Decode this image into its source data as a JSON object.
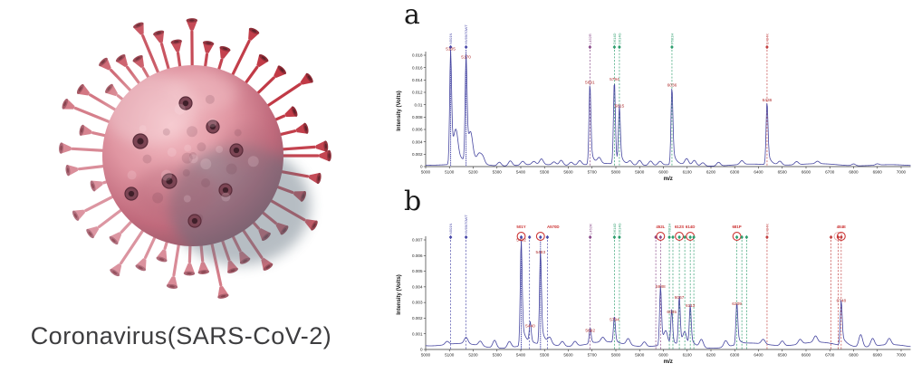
{
  "caption": "Coronavirus(SARS-CoV-2)",
  "colors": {
    "trace": "#4646a0",
    "peak_label": "#b03030",
    "blue_marker": "#4848a8",
    "purple_marker": "#8a4a8a",
    "green_marker": "#2e9e6e",
    "red_marker": "#c24040",
    "circle_red": "#cc3333",
    "axis": "#333333",
    "virus_body": "#d87f8e",
    "virus_spike_red": "#c13a46",
    "virus_spike_pink": "#dc96a2"
  },
  "chart_data": [
    {
      "type": "line",
      "panel_letter": "a",
      "xlabel": "m/z",
      "ylabel": "Intensity (Volts)",
      "xlim": [
        5000,
        7040
      ],
      "xtick_start": 5000,
      "xtick_end": 7000,
      "xtick_step": 100,
      "ylim": [
        0,
        0.0195
      ],
      "ytick_labels": [
        "0",
        "0.002",
        "0.004",
        "0.006",
        "0.008",
        "0.01",
        "0.012",
        "0.014",
        "0.016",
        "0.018"
      ],
      "ytick_values": [
        0,
        0.002,
        0.004,
        0.006,
        0.008,
        0.01,
        0.012,
        0.014,
        0.016,
        0.018
      ],
      "legend": "none",
      "grid": false,
      "peaks": [
        {
          "mz": 5105,
          "h": 0.0185,
          "label": "5105",
          "tail": 30
        },
        {
          "mz": 5170,
          "h": 0.0172,
          "label": "5170",
          "tail": 26
        },
        {
          "mz": 5691,
          "h": 0.0131,
          "label": "5691",
          "tail": 12
        },
        {
          "mz": 5794,
          "h": 0.0136,
          "label": "5794",
          "tail": 7
        },
        {
          "mz": 5815,
          "h": 0.0093,
          "label": "5815",
          "tail": 13
        },
        {
          "mz": 6036,
          "h": 0.0126,
          "label": "6036",
          "tail": 13
        },
        {
          "mz": 6436,
          "h": 0.0102,
          "label": "6436",
          "tail": 13
        }
      ],
      "noise_bumps": [
        {
          "mz": 5128,
          "h": 0.0035
        },
        {
          "mz": 5190,
          "h": 0.003
        },
        {
          "mz": 5225,
          "h": 0.0012
        },
        {
          "mz": 5240,
          "h": 0.0011
        },
        {
          "mz": 5310,
          "h": 0.0006
        },
        {
          "mz": 5356,
          "h": 0.0008
        },
        {
          "mz": 5408,
          "h": 0.0006
        },
        {
          "mz": 5455,
          "h": 0.0005
        },
        {
          "mz": 5487,
          "h": 0.0009
        },
        {
          "mz": 5540,
          "h": 0.0005
        },
        {
          "mz": 5570,
          "h": 0.0008
        },
        {
          "mz": 5612,
          "h": 0.0005
        },
        {
          "mz": 5648,
          "h": 0.0007
        },
        {
          "mz": 5730,
          "h": 0.0009
        },
        {
          "mz": 5860,
          "h": 0.0006
        },
        {
          "mz": 5900,
          "h": 0.0008
        },
        {
          "mz": 5946,
          "h": 0.0007
        },
        {
          "mz": 5986,
          "h": 0.0006
        },
        {
          "mz": 6098,
          "h": 0.001
        },
        {
          "mz": 6130,
          "h": 0.0008
        },
        {
          "mz": 6166,
          "h": 0.0005
        },
        {
          "mz": 6232,
          "h": 0.0006
        },
        {
          "mz": 6330,
          "h": 0.0006
        },
        {
          "mz": 6490,
          "h": 0.0006
        },
        {
          "mz": 6560,
          "h": 0.0005
        },
        {
          "mz": 6648,
          "h": 0.0004
        },
        {
          "mz": 6800,
          "h": 0.0003
        },
        {
          "mz": 6900,
          "h": 0.0002
        }
      ],
      "markers": [
        {
          "mz": 5105,
          "color": "#4848a8",
          "rot_label": "N501N",
          "solid": true
        },
        {
          "mz": 5170,
          "color": "#4848a8",
          "rot_label": "HV69/70WT",
          "solid": true
        },
        {
          "mz": 5691,
          "color": "#8a4a8a",
          "rot_label": "L452R"
        },
        {
          "mz": 5794,
          "color": "#2e9e6e",
          "rot_label": "D614D"
        },
        {
          "mz": 5815,
          "color": "#2e9e6e",
          "rot_label": "D614G"
        },
        {
          "mz": 6036,
          "color": "#2e9e6e",
          "rot_label": "P681H"
        },
        {
          "mz": 6436,
          "color": "#c24040",
          "rot_label": "E484K"
        }
      ]
    },
    {
      "type": "line",
      "panel_letter": "b",
      "xlabel": "m/z",
      "ylabel": "Intensity (Volts)",
      "xlim": [
        5000,
        7040
      ],
      "xtick_start": 5000,
      "xtick_end": 7000,
      "xtick_step": 100,
      "ylim": [
        0,
        0.0074
      ],
      "ytick_labels": [
        "0",
        "0.001",
        "0.002",
        "0.003",
        "0.004",
        "0.005",
        "0.006",
        "0.007"
      ],
      "ytick_values": [
        0,
        0.001,
        0.002,
        0.003,
        0.004,
        0.005,
        0.006,
        0.007
      ],
      "legend": "none",
      "grid": false,
      "peaks": [
        {
          "mz": 5402,
          "h": 0.0068,
          "label": "5402",
          "tail": 16
        },
        {
          "mz": 5440,
          "h": 0.0013,
          "label": "5440",
          "tail": 8
        },
        {
          "mz": 5483,
          "h": 0.006,
          "label": "5483",
          "tail": 14
        },
        {
          "mz": 5692,
          "h": 0.001,
          "label": "5692",
          "tail": 8
        },
        {
          "mz": 5794,
          "h": 0.0017,
          "label": "5794",
          "tail": 8
        },
        {
          "mz": 5988,
          "h": 0.0038,
          "label": "5988",
          "tail": 10
        },
        {
          "mz": 6035,
          "h": 0.0022,
          "label": "6035",
          "tail": 8
        },
        {
          "mz": 6067,
          "h": 0.0031,
          "label": "6067",
          "tail": 8
        },
        {
          "mz": 6113,
          "h": 0.0026,
          "label": "6113",
          "tail": 14
        },
        {
          "mz": 6309,
          "h": 0.0027,
          "label": "6309",
          "tail": 12
        },
        {
          "mz": 6748,
          "h": 0.0029,
          "label": "6748",
          "tail": 22
        }
      ],
      "noise_bumps": [
        {
          "mz": 5090,
          "h": 0.0002
        },
        {
          "mz": 5170,
          "h": 0.0004
        },
        {
          "mz": 5230,
          "h": 0.0003
        },
        {
          "mz": 5290,
          "h": 0.0005
        },
        {
          "mz": 5352,
          "h": 0.0004
        },
        {
          "mz": 5522,
          "h": 0.0004
        },
        {
          "mz": 5575,
          "h": 0.0003
        },
        {
          "mz": 5628,
          "h": 0.0003
        },
        {
          "mz": 5745,
          "h": 0.0003
        },
        {
          "mz": 5852,
          "h": 0.0004
        },
        {
          "mz": 5920,
          "h": 0.0003
        },
        {
          "mz": 6010,
          "h": 0.0008
        },
        {
          "mz": 6090,
          "h": 0.0008
        },
        {
          "mz": 6160,
          "h": 0.0005
        },
        {
          "mz": 6262,
          "h": 0.0004
        },
        {
          "mz": 6420,
          "h": 0.0003
        },
        {
          "mz": 6500,
          "h": 0.0003
        },
        {
          "mz": 6575,
          "h": 0.0003
        },
        {
          "mz": 6640,
          "h": 0.0004
        },
        {
          "mz": 6830,
          "h": 0.0008
        },
        {
          "mz": 6880,
          "h": 0.0005
        },
        {
          "mz": 6950,
          "h": 0.0004
        }
      ],
      "markers": [
        {
          "mz": 5105,
          "color": "#4848a8",
          "rot_label": "N501N"
        },
        {
          "mz": 5170,
          "color": "#4848a8",
          "rot_label": "HV69/70WT"
        },
        {
          "mz": 5402,
          "color": "#4848a8",
          "solid": true,
          "circled": "red",
          "top_label": "501Y"
        },
        {
          "mz": 5437,
          "color": "#4848a8"
        },
        {
          "mz": 5483,
          "color": "#4848a8",
          "solid": true,
          "circled": "red",
          "top_label": "A570D",
          "top_dx": 14
        },
        {
          "mz": 5512,
          "color": "#4848a8"
        },
        {
          "mz": 5692,
          "color": "#8a4a8a",
          "rot_label": "L452R"
        },
        {
          "mz": 5794,
          "color": "#2e9e6e",
          "rot_label": "D614D"
        },
        {
          "mz": 5815,
          "color": "#2e9e6e",
          "rot_label": "D614G"
        },
        {
          "mz": 5968,
          "color": "#8a4a8a"
        },
        {
          "mz": 5988,
          "color": "#8a4a8a",
          "circled": "red",
          "top_label": "452L"
        },
        {
          "mz": 6025,
          "color": "#2e9e6e",
          "rot_label": "P681H"
        },
        {
          "mz": 6040,
          "color": "#2e9e6e"
        },
        {
          "mz": 6067,
          "color": "#2e9e6e",
          "circled": "red",
          "top_label": "612S"
        },
        {
          "mz": 6090,
          "color": "#2e9e6e"
        },
        {
          "mz": 6113,
          "color": "#2e9e6e",
          "circled": "red",
          "top_label": "614D"
        },
        {
          "mz": 6128,
          "color": "#2e9e6e"
        },
        {
          "mz": 6309,
          "color": "#2e9e6e",
          "circled": "red",
          "top_label": "681P"
        },
        {
          "mz": 6330,
          "color": "#2e9e6e"
        },
        {
          "mz": 6350,
          "color": "#2e9e6e"
        },
        {
          "mz": 6436,
          "color": "#c24040",
          "rot_label": "E484K"
        },
        {
          "mz": 6705,
          "color": "#c24040"
        },
        {
          "mz": 6735,
          "color": "#c24040",
          "circled": "open"
        },
        {
          "mz": 6748,
          "color": "#c24040",
          "circled": "red",
          "top_label": "484E"
        }
      ]
    }
  ]
}
